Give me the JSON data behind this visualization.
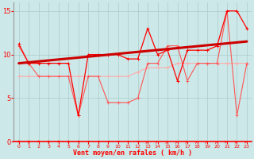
{
  "xlabel": "Vent moyen/en rafales ( km/h )",
  "xlim": [
    -0.5,
    23.5
  ],
  "ylim": [
    0,
    16
  ],
  "yticks": [
    0,
    5,
    10,
    15
  ],
  "xticks": [
    0,
    1,
    2,
    3,
    4,
    5,
    6,
    7,
    8,
    9,
    10,
    11,
    12,
    13,
    14,
    15,
    16,
    17,
    18,
    19,
    20,
    21,
    22,
    23
  ],
  "bg_color": "#cce8e8",
  "grid_color": "#aacccc",
  "line_bright_red": "#ff0000",
  "line_med_red": "#ff5555",
  "line_light_red": "#ffaaaa",
  "line_trend_color": "#cc0000",
  "line_bright2_color": "#ff2222",
  "series1_x": [
    0,
    1,
    2,
    3,
    4,
    5,
    6,
    7,
    8,
    9,
    10,
    11,
    12,
    13,
    14,
    15,
    16,
    17,
    18,
    19,
    20,
    21,
    22,
    23
  ],
  "series1_y": [
    11.2,
    9.0,
    9.0,
    9.0,
    9.0,
    9.0,
    3.0,
    10.0,
    10.0,
    10.0,
    10.0,
    9.5,
    9.5,
    13.0,
    10.0,
    10.5,
    7.0,
    10.5,
    10.5,
    10.5,
    11.0,
    15.0,
    15.0,
    13.0
  ],
  "series2_x": [
    0,
    1,
    2,
    3,
    4,
    5,
    6,
    7,
    8,
    9,
    10,
    11,
    12,
    13,
    14,
    15,
    16,
    17,
    18,
    19,
    20,
    21,
    22,
    23
  ],
  "series2_y": [
    11.0,
    9.0,
    7.5,
    7.5,
    7.5,
    7.5,
    3.0,
    7.5,
    7.5,
    4.5,
    4.5,
    4.5,
    5.0,
    9.0,
    9.0,
    11.0,
    11.0,
    7.0,
    9.0,
    9.0,
    9.0,
    15.0,
    3.0,
    9.0
  ],
  "series3_x": [
    0,
    1,
    2,
    3,
    4,
    5,
    6,
    7,
    8,
    9,
    10,
    11,
    12,
    13,
    14,
    15,
    16,
    17,
    18,
    19,
    20,
    21,
    22,
    23
  ],
  "series3_y": [
    7.5,
    7.5,
    7.5,
    7.5,
    7.5,
    7.5,
    7.5,
    7.5,
    7.5,
    7.5,
    7.5,
    7.5,
    8.0,
    8.5,
    8.5,
    8.5,
    9.0,
    9.0,
    9.0,
    9.0,
    9.0,
    9.0,
    9.0,
    9.0
  ],
  "trend_x": [
    0,
    23
  ],
  "trend_y": [
    9.0,
    11.5
  ],
  "wind_x": [
    0,
    1,
    2,
    3,
    4,
    5,
    6,
    7,
    8,
    9,
    10,
    11,
    12,
    13,
    14,
    15,
    16,
    17,
    18,
    19,
    20,
    21,
    22,
    23
  ],
  "wind_angles_deg": [
    0,
    0,
    0,
    0,
    0,
    0,
    30,
    45,
    45,
    45,
    45,
    45,
    45,
    60,
    60,
    60,
    60,
    60,
    60,
    60,
    60,
    70,
    70,
    70
  ]
}
